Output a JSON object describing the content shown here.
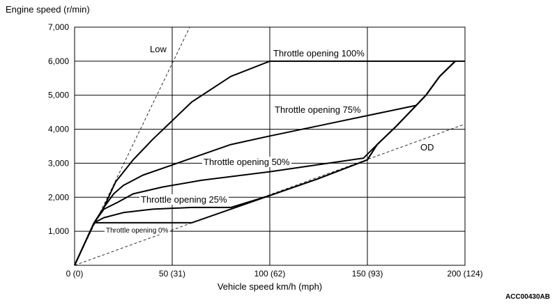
{
  "chart_data": {
    "type": "line",
    "ylabel": "Engine speed (r/min)",
    "xlabel": "Vehicle speed  km/h (mph)",
    "x_ticks": [
      "0 (0)",
      "50 (31)",
      "100 (62)",
      "150 (93)",
      "200 (124)"
    ],
    "y_ticks": [
      "1,000",
      "2,000",
      "3,000",
      "4,000",
      "5,000",
      "6,000",
      "7,000"
    ],
    "xlim": [
      0,
      200
    ],
    "ylim": [
      0,
      7000
    ],
    "grid": true,
    "figure_id": "ACC00430AB",
    "series": [
      {
        "name": "Throttle opening 100%",
        "style": "solid",
        "points": [
          [
            0,
            0
          ],
          [
            10,
            1250
          ],
          [
            15,
            1700
          ],
          [
            21,
            2450
          ],
          [
            30,
            3100
          ],
          [
            40,
            3700
          ],
          [
            50,
            4250
          ],
          [
            60,
            4800
          ],
          [
            80,
            5550
          ],
          [
            100,
            6000
          ],
          [
            200,
            6000
          ]
        ]
      },
      {
        "name": "Throttle opening 75%",
        "style": "solid",
        "points": [
          [
            0,
            0
          ],
          [
            10,
            1250
          ],
          [
            15,
            1700
          ],
          [
            20,
            2100
          ],
          [
            25,
            2350
          ],
          [
            35,
            2650
          ],
          [
            50,
            2950
          ],
          [
            65,
            3250
          ],
          [
            80,
            3550
          ],
          [
            100,
            3800
          ],
          [
            125,
            4100
          ],
          [
            150,
            4400
          ],
          [
            175,
            4700
          ],
          [
            180,
            5000
          ],
          [
            187,
            5550
          ],
          [
            195,
            6000
          ]
        ]
      },
      {
        "name": "Throttle opening 50%",
        "style": "solid",
        "points": [
          [
            0,
            0
          ],
          [
            10,
            1250
          ],
          [
            15,
            1650
          ],
          [
            22,
            1850
          ],
          [
            30,
            2100
          ],
          [
            45,
            2300
          ],
          [
            65,
            2500
          ],
          [
            100,
            2750
          ],
          [
            130,
            3000
          ],
          [
            148,
            3150
          ],
          [
            155,
            3550
          ],
          [
            165,
            4100
          ],
          [
            175,
            4700
          ],
          [
            180,
            5000
          ],
          [
            187,
            5550
          ],
          [
            195,
            6000
          ]
        ]
      },
      {
        "name": "Throttle opening 25%",
        "style": "solid",
        "points": [
          [
            0,
            0
          ],
          [
            10,
            1250
          ],
          [
            15,
            1400
          ],
          [
            25,
            1550
          ],
          [
            40,
            1650
          ],
          [
            60,
            1700
          ],
          [
            80,
            1700
          ],
          [
            100,
            2050
          ],
          [
            125,
            2550
          ],
          [
            150,
            3100
          ],
          [
            155,
            3550
          ],
          [
            165,
            4100
          ],
          [
            175,
            4700
          ],
          [
            180,
            5000
          ],
          [
            187,
            5550
          ],
          [
            195,
            6000
          ]
        ]
      },
      {
        "name": "Throttle opening 0%",
        "style": "solid",
        "points": [
          [
            0,
            0
          ],
          [
            10,
            1250
          ],
          [
            60,
            1250
          ],
          [
            100,
            2050
          ],
          [
            125,
            2550
          ],
          [
            150,
            3100
          ],
          [
            155,
            3550
          ],
          [
            165,
            4100
          ],
          [
            175,
            4700
          ],
          [
            180,
            5000
          ],
          [
            187,
            5550
          ],
          [
            195,
            6000
          ]
        ]
      },
      {
        "name": "Low",
        "style": "dashed",
        "points": [
          [
            0,
            0
          ],
          [
            59,
            7000
          ]
        ]
      },
      {
        "name": "OD",
        "style": "dashed",
        "points": [
          [
            0,
            0
          ],
          [
            200,
            4150
          ]
        ]
      }
    ]
  }
}
